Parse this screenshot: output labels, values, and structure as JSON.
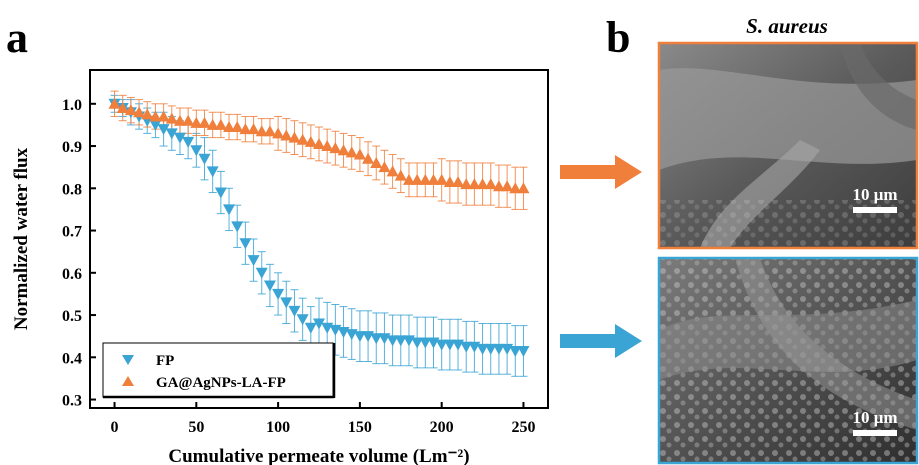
{
  "panels": {
    "a_label": "a",
    "b_label": "b"
  },
  "chart_data": {
    "type": "scatter",
    "xlabel": "Cumulative permeate volume (Lm⁻²)",
    "ylabel": "Normalized water flux",
    "xlim": [
      -15,
      265
    ],
    "ylim": [
      0.28,
      1.08
    ],
    "xticks": [
      0,
      50,
      100,
      150,
      200,
      250
    ],
    "yticks": [
      0.3,
      0.4,
      0.5,
      0.6,
      0.7,
      0.8,
      0.9,
      1.0
    ],
    "xtick_labels": [
      "0",
      "50",
      "100",
      "150",
      "200",
      "250"
    ],
    "ytick_labels": [
      "0.3",
      "0.4",
      "0.5",
      "0.6",
      "0.7",
      "0.8",
      "0.9",
      "1.0"
    ],
    "legend_position": "bottom-left",
    "series": [
      {
        "name": "FP",
        "marker": "triangle-down",
        "color": "#3aa4d4",
        "x": [
          0,
          5,
          10,
          15,
          20,
          25,
          30,
          35,
          40,
          45,
          50,
          55,
          60,
          65,
          70,
          75,
          80,
          85,
          90,
          95,
          100,
          105,
          110,
          115,
          120,
          125,
          130,
          135,
          140,
          145,
          150,
          155,
          160,
          165,
          170,
          175,
          180,
          185,
          190,
          195,
          200,
          205,
          210,
          215,
          220,
          225,
          230,
          235,
          240,
          245,
          250
        ],
        "y": [
          1.0,
          0.99,
          0.98,
          0.97,
          0.96,
          0.95,
          0.94,
          0.93,
          0.92,
          0.91,
          0.89,
          0.87,
          0.84,
          0.79,
          0.75,
          0.71,
          0.67,
          0.63,
          0.6,
          0.57,
          0.55,
          0.53,
          0.51,
          0.49,
          0.47,
          0.48,
          0.47,
          0.465,
          0.46,
          0.455,
          0.45,
          0.45,
          0.445,
          0.445,
          0.44,
          0.44,
          0.44,
          0.435,
          0.435,
          0.435,
          0.43,
          0.43,
          0.43,
          0.425,
          0.425,
          0.42,
          0.42,
          0.42,
          0.42,
          0.415,
          0.415
        ],
        "error": [
          0.02,
          0.02,
          0.03,
          0.03,
          0.03,
          0.03,
          0.04,
          0.04,
          0.04,
          0.04,
          0.04,
          0.05,
          0.05,
          0.05,
          0.05,
          0.05,
          0.05,
          0.05,
          0.05,
          0.05,
          0.05,
          0.05,
          0.05,
          0.05,
          0.05,
          0.06,
          0.06,
          0.06,
          0.06,
          0.06,
          0.06,
          0.06,
          0.06,
          0.06,
          0.06,
          0.06,
          0.06,
          0.06,
          0.06,
          0.06,
          0.06,
          0.06,
          0.06,
          0.06,
          0.06,
          0.06,
          0.06,
          0.06,
          0.06,
          0.06,
          0.06
        ]
      },
      {
        "name": "GA@AgNPs-LA-FP",
        "marker": "triangle-up",
        "color": "#f07f3c",
        "x": [
          0,
          5,
          10,
          15,
          20,
          25,
          30,
          35,
          40,
          45,
          50,
          55,
          60,
          65,
          70,
          75,
          80,
          85,
          90,
          95,
          100,
          105,
          110,
          115,
          120,
          125,
          130,
          135,
          140,
          145,
          150,
          155,
          160,
          165,
          170,
          175,
          180,
          185,
          190,
          195,
          200,
          205,
          210,
          215,
          220,
          225,
          230,
          235,
          240,
          245,
          250
        ],
        "y": [
          1.0,
          0.99,
          0.985,
          0.98,
          0.975,
          0.97,
          0.97,
          0.965,
          0.96,
          0.96,
          0.955,
          0.955,
          0.95,
          0.95,
          0.945,
          0.945,
          0.94,
          0.94,
          0.935,
          0.935,
          0.93,
          0.925,
          0.92,
          0.915,
          0.91,
          0.905,
          0.9,
          0.895,
          0.89,
          0.885,
          0.88,
          0.87,
          0.86,
          0.85,
          0.84,
          0.83,
          0.82,
          0.82,
          0.82,
          0.82,
          0.82,
          0.815,
          0.815,
          0.81,
          0.81,
          0.81,
          0.81,
          0.805,
          0.805,
          0.8,
          0.8
        ],
        "error": [
          0.03,
          0.03,
          0.03,
          0.03,
          0.03,
          0.03,
          0.03,
          0.03,
          0.03,
          0.03,
          0.03,
          0.03,
          0.03,
          0.03,
          0.03,
          0.03,
          0.03,
          0.03,
          0.03,
          0.03,
          0.04,
          0.04,
          0.04,
          0.04,
          0.04,
          0.04,
          0.04,
          0.04,
          0.04,
          0.04,
          0.04,
          0.04,
          0.04,
          0.04,
          0.04,
          0.04,
          0.04,
          0.04,
          0.04,
          0.04,
          0.05,
          0.05,
          0.05,
          0.05,
          0.05,
          0.05,
          0.05,
          0.05,
          0.05,
          0.05,
          0.05
        ]
      }
    ]
  },
  "micrographs": {
    "title": "S. aureus",
    "top": {
      "frame_color": "#f07f3c",
      "scale_label": "10 μm",
      "arrow_color": "#f07f3c"
    },
    "bottom": {
      "frame_color": "#3aa4d4",
      "scale_label": "10 μm",
      "arrow_color": "#3aa4d4"
    }
  }
}
